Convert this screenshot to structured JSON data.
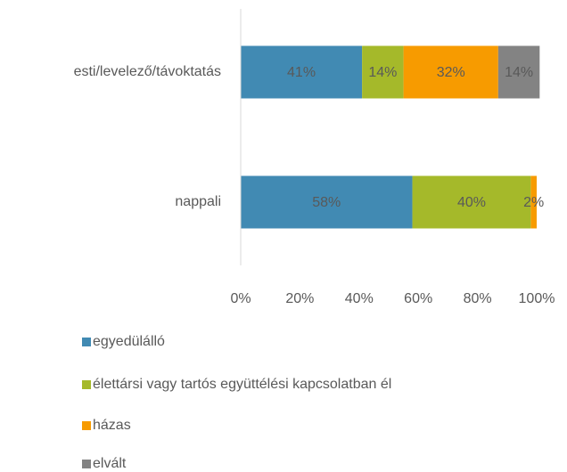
{
  "chart_data": {
    "type": "stacked-bar-horizontal",
    "categories": [
      "esti/levelező/távoktatás",
      "nappali"
    ],
    "series": [
      {
        "name": "egyedülálló",
        "color": "#418ab3",
        "values": [
          41,
          58
        ],
        "value_labels": [
          "41%",
          "58%"
        ]
      },
      {
        "name": "élettársi vagy tartós együttélési kapcsolatban él",
        "color": "#a5b92a",
        "values": [
          14,
          40
        ],
        "value_labels": [
          "14%",
          "40%"
        ]
      },
      {
        "name": "házas",
        "color": "#f79b00",
        "values": [
          32,
          2
        ],
        "value_labels": [
          "32%",
          "2%"
        ]
      },
      {
        "name": "elvált",
        "color": "#838383",
        "values": [
          14,
          0
        ],
        "value_labels": [
          "14%",
          null
        ]
      }
    ],
    "xlim": [
      0,
      100
    ],
    "xticks": [
      {
        "value": 0,
        "label": "0%"
      },
      {
        "value": 20,
        "label": "20%"
      },
      {
        "value": 40,
        "label": "40%"
      },
      {
        "value": 60,
        "label": "60%"
      },
      {
        "value": 80,
        "label": "80%"
      },
      {
        "value": 100,
        "label": "100%"
      }
    ],
    "legend": "bottom"
  }
}
